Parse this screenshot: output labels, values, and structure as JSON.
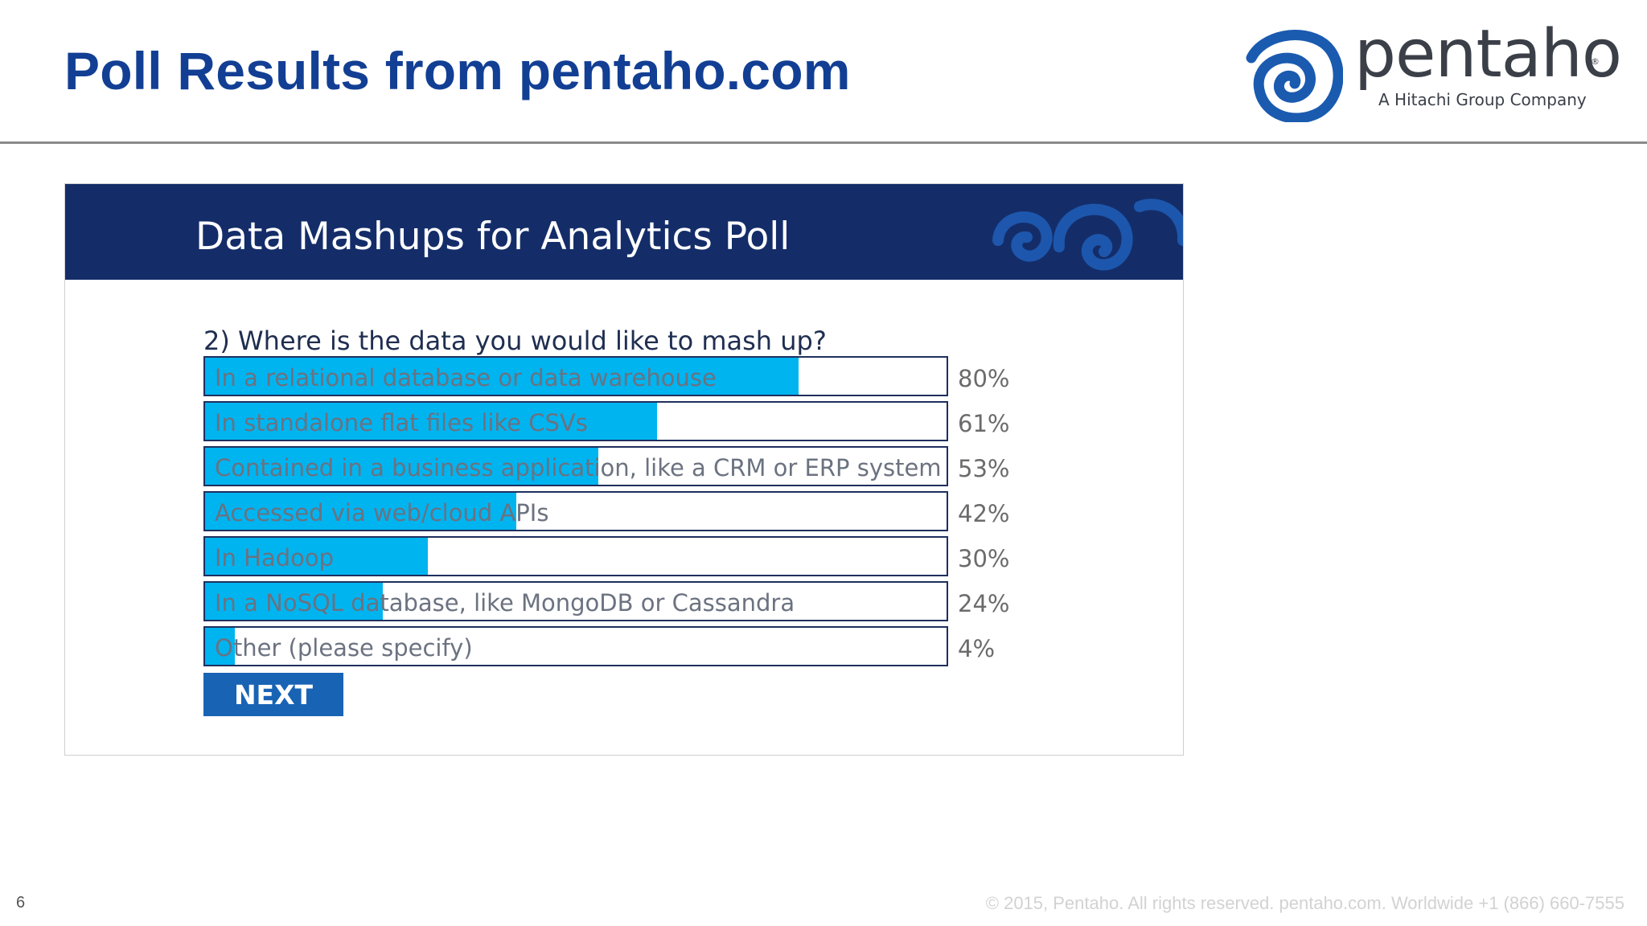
{
  "slide": {
    "title": "Poll Results from pentaho.com",
    "page_number": "6",
    "footer": "© 2015, Pentaho. All rights reserved. pentaho.com. Worldwide +1 (866) 660-7555"
  },
  "logo": {
    "word": "pentaho",
    "tagline": "A Hitachi Group Company",
    "registered": "®",
    "icon": "pentaho-swirl-icon",
    "color": "#1a5bb0"
  },
  "poll": {
    "header_title": "Data Mashups for Analytics Poll",
    "header_color": "#142d69",
    "question": "2) Where is the data you would like to mash up?",
    "bar_color": "#00b4f0",
    "options": [
      {
        "label": "In a relational database or data warehouse",
        "percent": "80%",
        "value": 0.8
      },
      {
        "label": "In standalone flat files like CSVs",
        "percent": "61%",
        "value": 0.61
      },
      {
        "label": "Contained in a business application, like a CRM or ERP system",
        "percent": "53%",
        "value": 0.53
      },
      {
        "label": "Accessed via web/cloud APIs",
        "percent": "42%",
        "value": 0.42
      },
      {
        "label": "In Hadoop",
        "percent": "30%",
        "value": 0.3
      },
      {
        "label": "In a NoSQL database, like MongoDB or Cassandra",
        "percent": "24%",
        "value": 0.24
      },
      {
        "label": "Other (please specify)",
        "percent": "4%",
        "value": 0.04
      }
    ],
    "next_label": "NEXT"
  }
}
